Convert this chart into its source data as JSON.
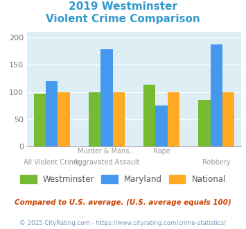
{
  "title_line1": "2019 Westminster",
  "title_line2": "Violent Crime Comparison",
  "title_color": "#3399cc",
  "westminster": [
    97,
    100,
    113,
    85
  ],
  "maryland": [
    120,
    178,
    75,
    187
  ],
  "national": [
    100,
    100,
    100,
    100
  ],
  "westminster_color": "#77bb33",
  "maryland_color": "#4499ee",
  "national_color": "#ffaa22",
  "bg_color": "#ddeef5",
  "ylim": [
    0,
    210
  ],
  "yticks": [
    0,
    50,
    100,
    150,
    200
  ],
  "row1_labels": [
    "",
    "Murder & Mans...",
    "Rape",
    ""
  ],
  "row2_labels": [
    "All Violent Crime",
    "Aggravated Assault",
    "",
    "Robbery"
  ],
  "footnote1": "Compared to U.S. average. (U.S. average equals 100)",
  "footnote2": "© 2025 CityRating.com - https://www.cityrating.com/crime-statistics/",
  "footnote1_color": "#cc4400",
  "footnote2_color": "#7799bb",
  "legend_labels": [
    "Westminster",
    "Maryland",
    "National"
  ]
}
